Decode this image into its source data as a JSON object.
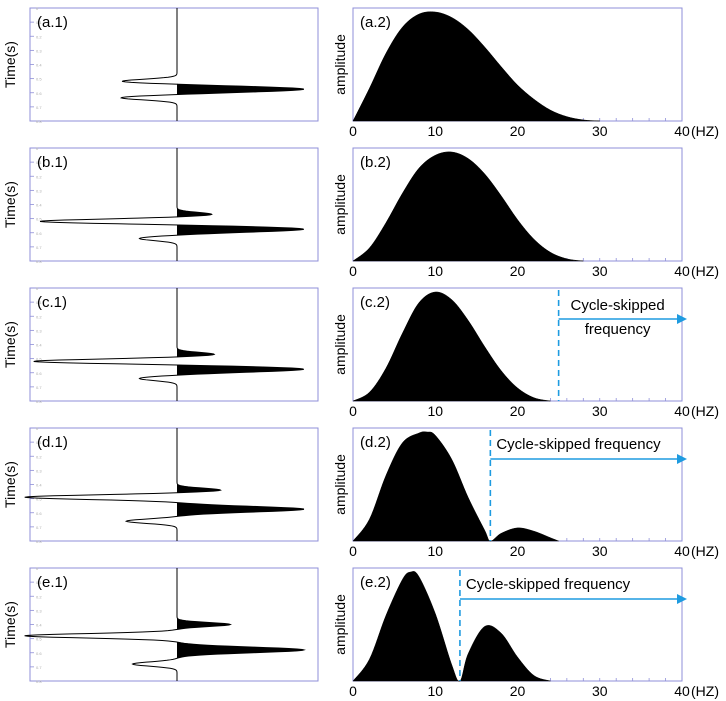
{
  "chart_data": [
    {
      "panel": "a",
      "trace": {
        "label": "(a.1)",
        "ylabel": "Time(s)",
        "type": "waveform",
        "time": [
          0.0,
          0.1,
          0.2,
          0.3,
          0.4,
          0.5,
          0.6,
          0.7,
          0.8
        ],
        "main_peak": {
          "time": 0.575,
          "amplitude": 1.0
        },
        "side_peaks": [],
        "troughs": [
          {
            "time": 0.52,
            "amplitude": -0.45
          },
          {
            "time": 0.635,
            "amplitude": -0.45
          }
        ]
      },
      "spectrum": {
        "label": "(a.2)",
        "type": "area",
        "ylabel": "amplitude",
        "xunit": "(HZ)",
        "xticks": [
          0,
          10,
          20,
          30,
          40
        ],
        "xlim": [
          0,
          40
        ],
        "x": [
          0,
          2,
          4,
          6,
          8,
          10,
          12,
          14,
          16,
          18,
          20,
          22,
          24,
          26,
          28,
          30
        ],
        "values": [
          0.0,
          0.3,
          0.62,
          0.86,
          0.98,
          1.0,
          0.95,
          0.84,
          0.68,
          0.5,
          0.33,
          0.2,
          0.1,
          0.04,
          0.01,
          0.0
        ],
        "annotation": null
      }
    },
    {
      "panel": "b",
      "trace": {
        "label": "(b.1)",
        "ylabel": "Time(s)",
        "type": "waveform",
        "time": [
          0.0,
          0.1,
          0.2,
          0.3,
          0.4,
          0.5,
          0.6,
          0.7,
          0.8
        ],
        "main_peak": {
          "time": 0.575,
          "amplitude": 1.0
        },
        "side_peaks": [
          {
            "time": 0.47,
            "amplitude": 0.28
          }
        ],
        "troughs": [
          {
            "time": 0.52,
            "amplitude": -1.1
          },
          {
            "time": 0.64,
            "amplitude": -0.3
          }
        ]
      },
      "spectrum": {
        "label": "(b.2)",
        "type": "area",
        "ylabel": "amplitude",
        "xunit": "(HZ)",
        "xticks": [
          0,
          10,
          20,
          30,
          40
        ],
        "xlim": [
          0,
          40
        ],
        "x": [
          0,
          2,
          4,
          6,
          8,
          10,
          12,
          14,
          16,
          18,
          20,
          22,
          24,
          26,
          28
        ],
        "values": [
          0.0,
          0.12,
          0.35,
          0.62,
          0.85,
          0.97,
          1.0,
          0.94,
          0.8,
          0.6,
          0.38,
          0.2,
          0.08,
          0.02,
          0.0
        ],
        "annotation": null
      }
    },
    {
      "panel": "c",
      "trace": {
        "label": "(c.1)",
        "ylabel": "Time(s)",
        "type": "waveform",
        "time": [
          0.0,
          0.1,
          0.2,
          0.3,
          0.4,
          0.5,
          0.6,
          0.7,
          0.8
        ],
        "main_peak": {
          "time": 0.575,
          "amplitude": 1.0
        },
        "side_peaks": [
          {
            "time": 0.47,
            "amplitude": 0.3
          }
        ],
        "troughs": [
          {
            "time": 0.52,
            "amplitude": -1.15
          },
          {
            "time": 0.64,
            "amplitude": -0.3
          }
        ]
      },
      "spectrum": {
        "label": "(c.2)",
        "type": "area",
        "ylabel": "amplitude",
        "xunit": "(HZ)",
        "xticks": [
          0,
          10,
          20,
          30,
          40
        ],
        "xlim": [
          0,
          40
        ],
        "x": [
          0,
          2,
          4,
          6,
          8,
          10,
          12,
          14,
          16,
          18,
          20,
          22,
          24
        ],
        "values": [
          0.0,
          0.08,
          0.3,
          0.62,
          0.9,
          1.0,
          0.93,
          0.74,
          0.5,
          0.28,
          0.12,
          0.03,
          0.0
        ],
        "annotation": {
          "text_line1": "Cycle-skipped",
          "text_line2": "frequency",
          "x": 25.0,
          "color": "#1e9be0"
        }
      }
    },
    {
      "panel": "d",
      "trace": {
        "label": "(d.1)",
        "ylabel": "Time(s)",
        "type": "waveform",
        "time": [
          0.0,
          0.1,
          0.2,
          0.3,
          0.4,
          0.5,
          0.6,
          0.7,
          0.8
        ],
        "main_peak": {
          "time": 0.575,
          "amplitude": 1.0
        },
        "side_peaks": [
          {
            "time": 0.44,
            "amplitude": 0.35
          }
        ],
        "troughs": [
          {
            "time": 0.49,
            "amplitude": -1.2
          },
          {
            "time": 0.66,
            "amplitude": -0.4
          }
        ]
      },
      "spectrum": {
        "label": "(d.2)",
        "type": "area",
        "ylabel": "amplitude",
        "xunit": "(HZ)",
        "xticks": [
          0,
          10,
          20,
          30,
          40
        ],
        "xlim": [
          0,
          40
        ],
        "x": [
          0,
          2,
          4,
          6,
          8,
          9,
          10,
          12,
          14,
          16,
          16.7,
          18,
          20,
          22,
          24,
          25
        ],
        "values": [
          0.0,
          0.2,
          0.6,
          0.9,
          0.99,
          1.0,
          0.97,
          0.75,
          0.4,
          0.1,
          0.0,
          0.07,
          0.12,
          0.09,
          0.03,
          0.0
        ],
        "annotation": {
          "text_line1": "Cycle-skipped frequency",
          "text_line2": "",
          "x": 16.7,
          "color": "#1e9be0"
        }
      }
    },
    {
      "panel": "e",
      "trace": {
        "label": "(e.1)",
        "ylabel": "Time(s)",
        "type": "waveform",
        "time": [
          0.0,
          0.1,
          0.2,
          0.3,
          0.4,
          0.5,
          0.6,
          0.7,
          0.8
        ],
        "main_peak": {
          "time": 0.58,
          "amplitude": 1.0
        },
        "side_peaks": [
          {
            "time": 0.4,
            "amplitude": 0.42
          }
        ],
        "troughs": [
          {
            "time": 0.48,
            "amplitude": -1.2
          },
          {
            "time": 0.68,
            "amplitude": -0.35
          }
        ]
      },
      "spectrum": {
        "label": "(e.2)",
        "type": "area",
        "ylabel": "amplitude",
        "xunit": "(HZ)",
        "xticks": [
          0,
          10,
          20,
          30,
          40
        ],
        "xlim": [
          0,
          40
        ],
        "x": [
          0,
          2,
          4,
          6,
          7,
          8,
          10,
          12,
          13,
          14,
          16,
          18,
          20,
          22,
          24
        ],
        "values": [
          0.0,
          0.2,
          0.6,
          0.93,
          1.0,
          0.96,
          0.62,
          0.15,
          0.0,
          0.25,
          0.5,
          0.44,
          0.22,
          0.05,
          0.0
        ],
        "annotation": {
          "text_line1": "Cycle-skipped frequency",
          "text_line2": "",
          "x": 13.0,
          "color": "#1e9be0"
        }
      }
    }
  ]
}
